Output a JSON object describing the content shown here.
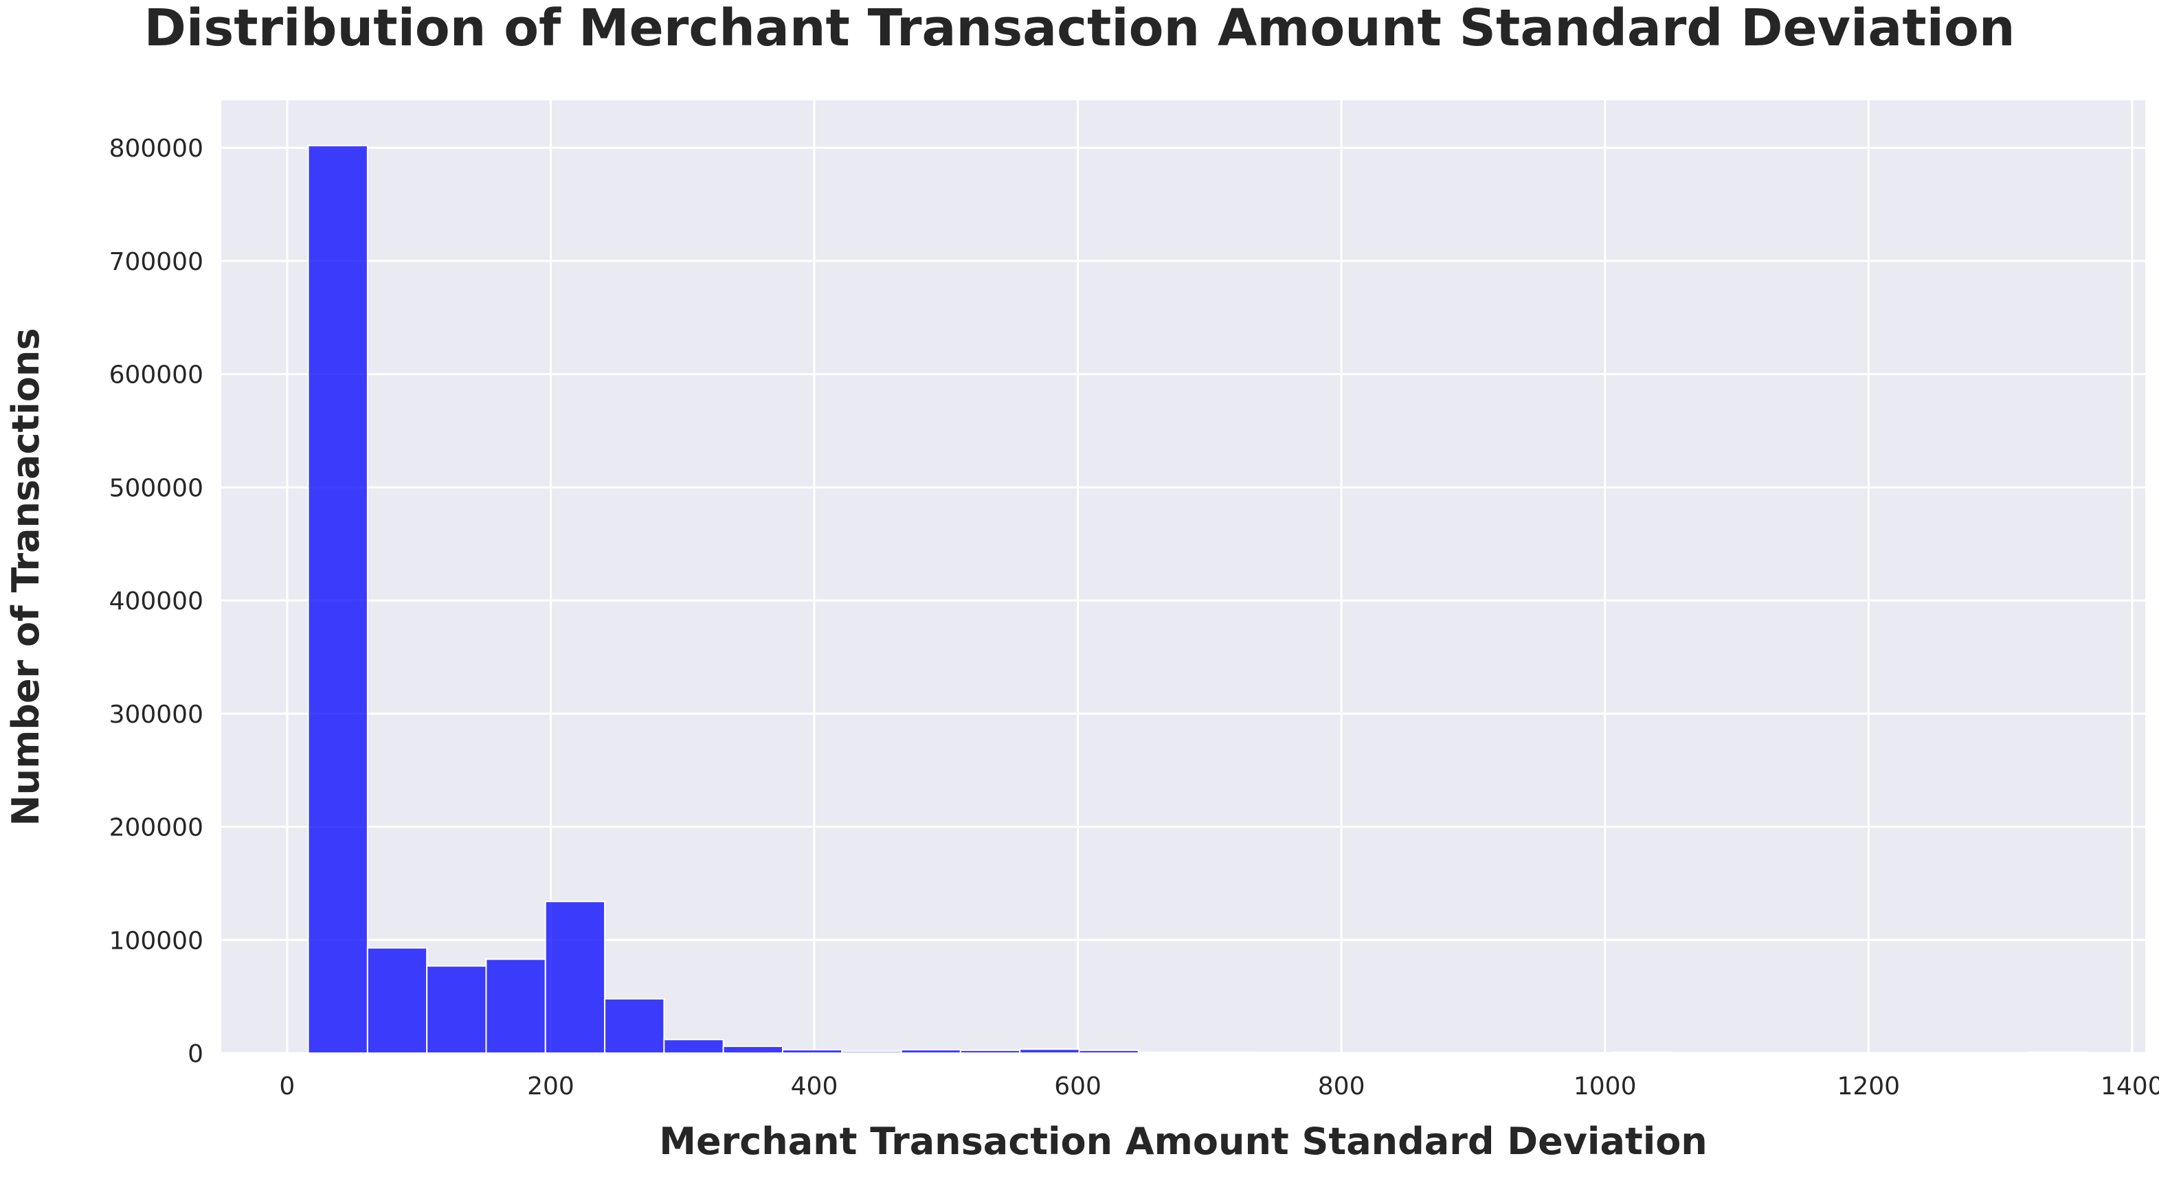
{
  "chart_data": {
    "type": "bar",
    "title": "Distribution of Merchant Transaction Amount Standard Deviation",
    "xlabel": "Merchant Transaction Amount Standard Deviation",
    "ylabel": "Number of Transactions",
    "xlim": [
      -50,
      1410
    ],
    "ylim": [
      0,
      842000
    ],
    "x_ticks": [
      0,
      200,
      400,
      600,
      800,
      1000,
      1200,
      1400
    ],
    "y_ticks": [
      0,
      100000,
      200000,
      300000,
      400000,
      500000,
      600000,
      700000,
      800000
    ],
    "grid": true,
    "bar_color": "#0000ff",
    "bar_opacity": 0.75,
    "background_color": "#eaeaf2",
    "bin_edges": [
      16,
      61,
      106,
      151,
      196,
      241,
      286,
      331,
      376,
      421,
      466,
      511,
      556,
      601,
      646,
      691,
      736,
      781,
      826,
      871,
      916,
      961,
      1006,
      1051,
      1096,
      1141,
      1186,
      1231,
      1276,
      1321,
      1366
    ],
    "values": [
      802000,
      93000,
      77000,
      83000,
      134000,
      48000,
      12000,
      6000,
      3000,
      1500,
      3000,
      2500,
      3500,
      2500,
      700,
      700,
      500,
      400,
      400,
      300,
      300,
      300,
      700,
      300,
      300,
      300,
      300,
      300,
      300,
      700
    ]
  }
}
